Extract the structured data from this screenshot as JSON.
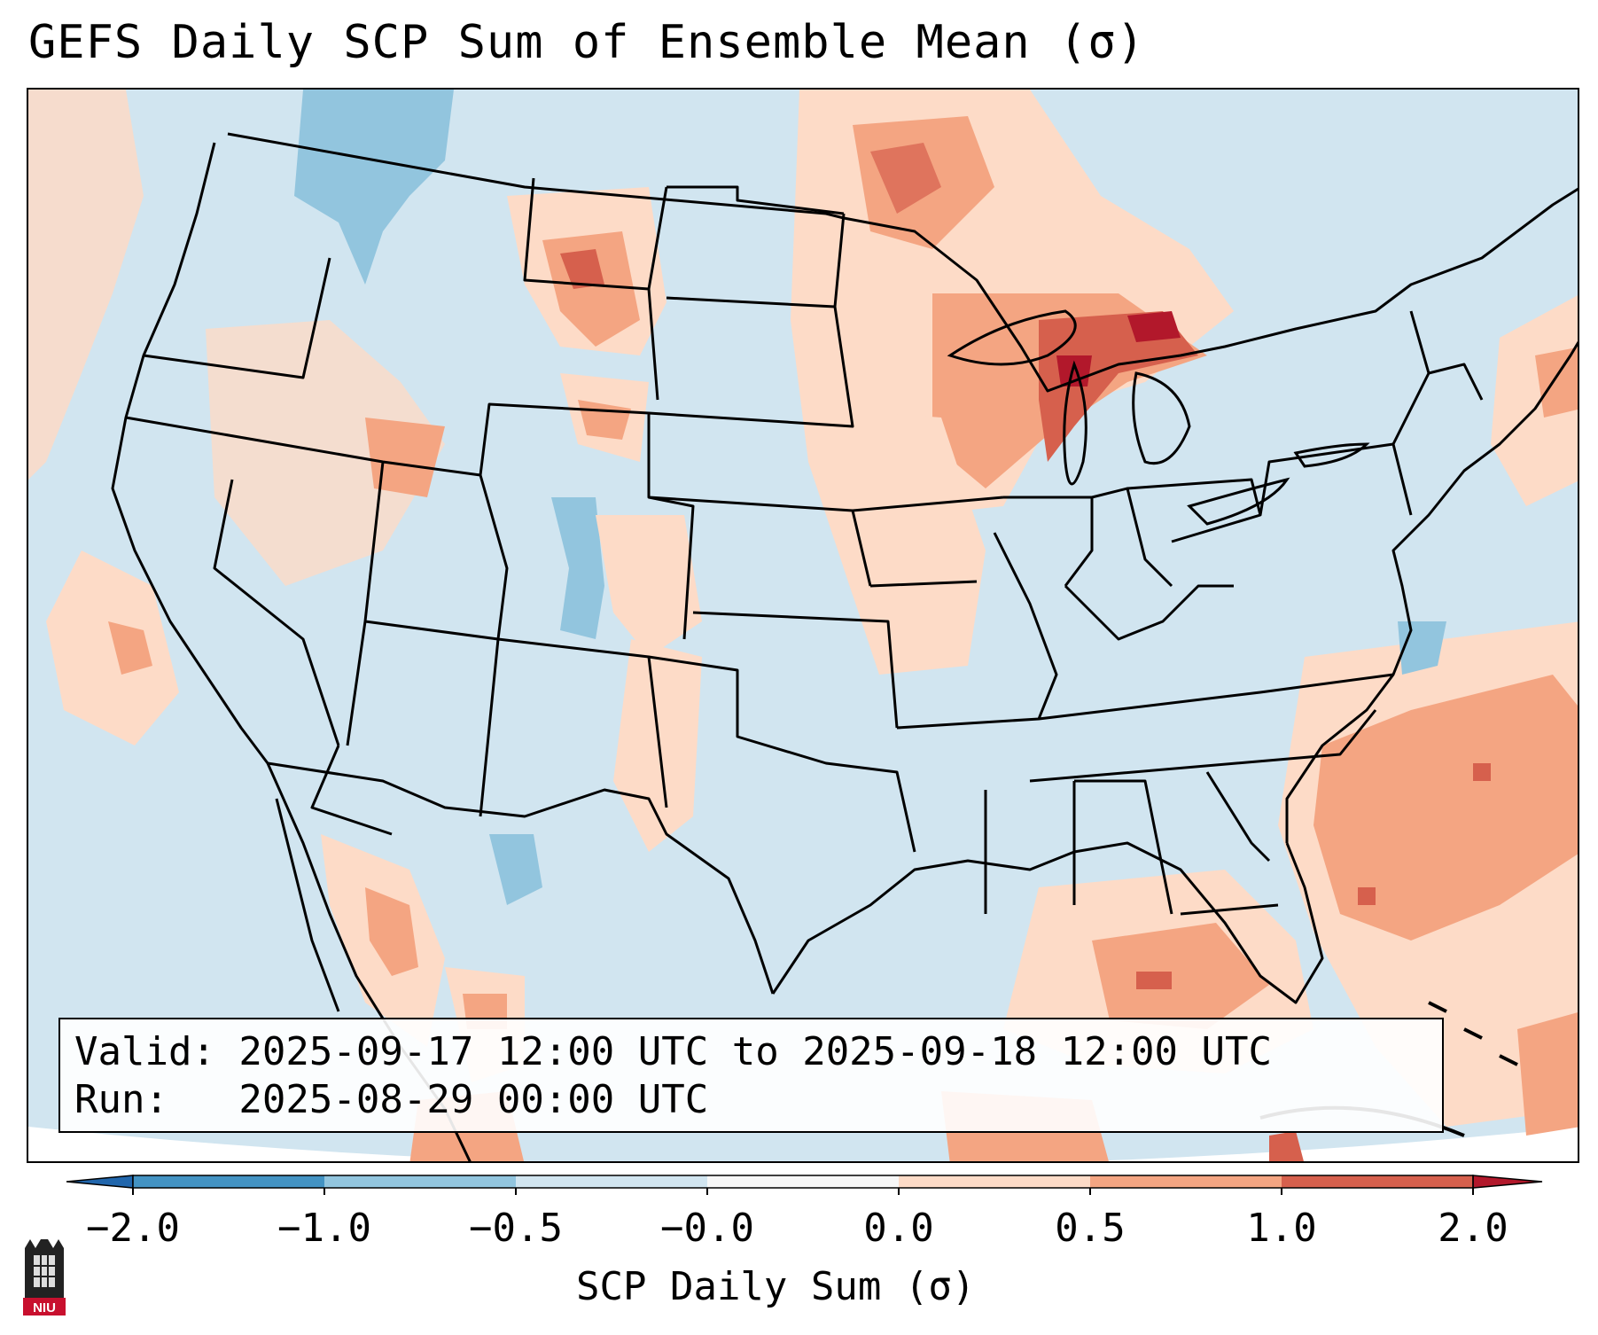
{
  "title": "GEFS Daily SCP Sum of Ensemble Mean (σ)",
  "info": {
    "valid_line": "Valid: 2025-09-17 12:00 UTC to 2025-09-18 12:00 UTC",
    "run_line": "Run:   2025-08-29 00:00 UTC"
  },
  "colorbar": {
    "label": "SCP Daily Sum (σ)",
    "ticks": [
      "−2.0",
      "−1.0",
      "−0.5",
      "−0.0",
      "0.0",
      "0.5",
      "1.0",
      "2.0"
    ],
    "bins": [
      {
        "range": "< -2.0",
        "color": "#2166ac"
      },
      {
        "range": "-2.0 to -1.0",
        "color": "#4393c3"
      },
      {
        "range": "-1.0 to -0.5",
        "color": "#92c5de"
      },
      {
        "range": "-0.5 to -0.0",
        "color": "#d1e5f0"
      },
      {
        "range": "-0.0 to 0.0",
        "color": "#f7f7f7"
      },
      {
        "range": "0.0 to 0.5",
        "color": "#fddbc7"
      },
      {
        "range": "0.5 to 1.0",
        "color": "#f4a582"
      },
      {
        "range": "1.0 to 2.0",
        "color": "#d6604d"
      },
      {
        "range": "> 2.0",
        "color": "#b2182b"
      }
    ]
  },
  "logo_text": "NIU",
  "colors": {
    "base_field": "#d1e5f0",
    "weak_positive": "#fddbc7",
    "moderate_positive": "#f4a582",
    "strong_positive": "#d6604d",
    "extreme_positive": "#b2182b",
    "moderate_negative": "#92c5de"
  }
}
